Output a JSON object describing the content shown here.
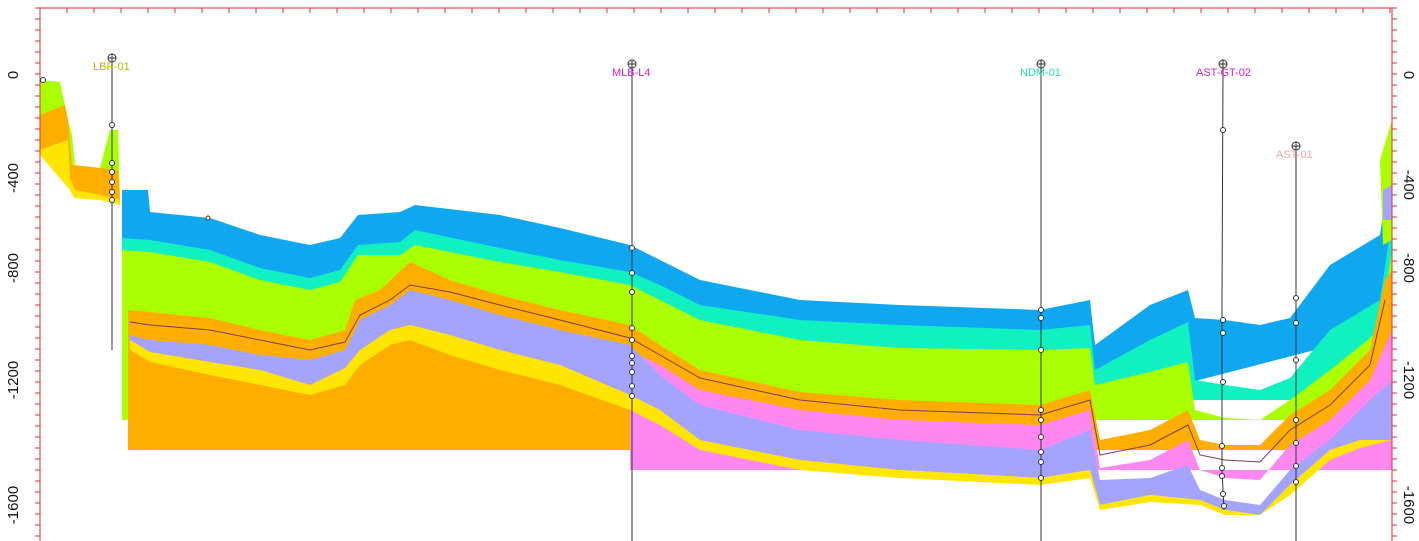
{
  "section": {
    "depth_axis": {
      "left_ticks": [
        "0",
        "-400",
        "-800",
        "-1200",
        "-1600"
      ],
      "right_ticks": [
        "0",
        "-400",
        "-800",
        "-1200",
        "-1600"
      ],
      "tick_values": [
        0,
        -400,
        -800,
        -1200,
        -1600
      ]
    },
    "wells": [
      {
        "name": "LBP-01",
        "color": "#b5b800"
      },
      {
        "name": "MLB-L4",
        "color": "#cc22cc"
      },
      {
        "name": "NDM-01",
        "color": "#22ddbb"
      },
      {
        "name": "AST-GT-02",
        "color": "#cc22cc"
      },
      {
        "name": "AST-01",
        "color": "#f4a3a3"
      }
    ],
    "layers": [
      {
        "id": "layer-blue",
        "color": "#0fa8f0"
      },
      {
        "id": "layer-cyan",
        "color": "#10f0c0"
      },
      {
        "id": "layer-lime",
        "color": "#aaff00"
      },
      {
        "id": "layer-orange",
        "color": "#ffae00"
      },
      {
        "id": "layer-pink",
        "color": "#ff88f0"
      },
      {
        "id": "layer-lavender",
        "color": "#a4a4ff"
      },
      {
        "id": "layer-yellow",
        "color": "#ffe600"
      }
    ],
    "frame_color": "#e03030"
  }
}
